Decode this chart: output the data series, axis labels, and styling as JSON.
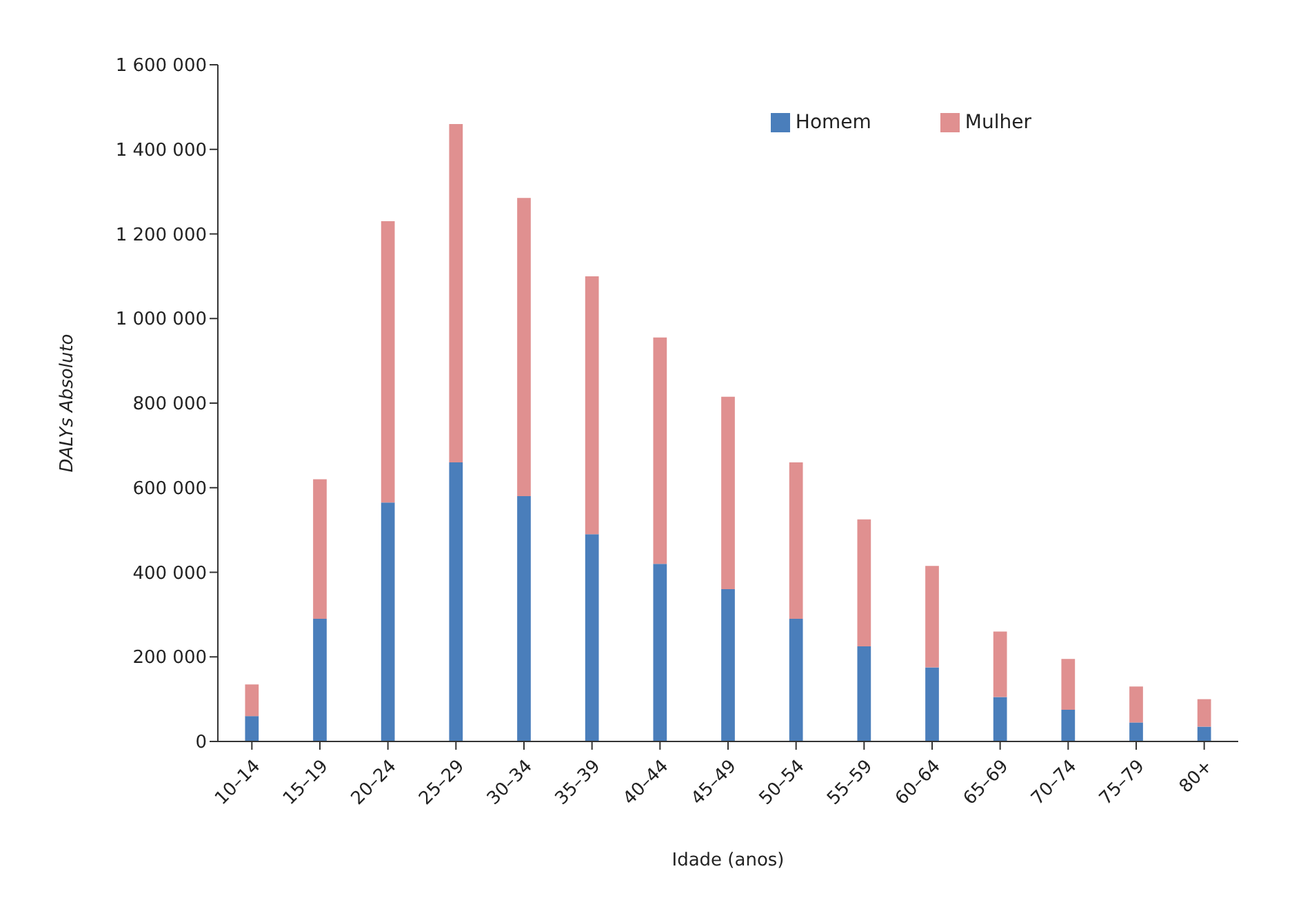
{
  "chart_data": {
    "type": "bar",
    "stacked": true,
    "xlabel": "Idade (anos)",
    "ylabel": "DALYs Absoluto",
    "categories": [
      "10–14",
      "15–19",
      "20–24",
      "25–29",
      "30–34",
      "35–39",
      "40–44",
      "45–49",
      "50–54",
      "55–59",
      "60–64",
      "65–69",
      "70–74",
      "75–79",
      "80+"
    ],
    "series": [
      {
        "name": "Homem",
        "color": "#4a7ebb",
        "values": [
          60000,
          290000,
          565000,
          660000,
          580000,
          490000,
          420000,
          360000,
          290000,
          225000,
          175000,
          105000,
          75000,
          45000,
          35000
        ]
      },
      {
        "name": "Mulher",
        "color": "#e09090",
        "values": [
          75000,
          330000,
          665000,
          800000,
          705000,
          610000,
          535000,
          455000,
          370000,
          300000,
          240000,
          155000,
          120000,
          85000,
          65000
        ]
      }
    ],
    "ylim": [
      0,
      1600000
    ],
    "yticks": [
      0,
      {
        "value": 200000,
        "label": "200 000"
      },
      {
        "value": 400000,
        "label": "400 000"
      },
      {
        "value": 600000,
        "label": "600 000"
      },
      {
        "value": 800000,
        "label": "800 000"
      },
      {
        "value": 1000000,
        "label": "1 000 000"
      },
      {
        "value": 1200000,
        "label": "1 200 000"
      },
      {
        "value": 1400000,
        "label": "1 400 000"
      },
      {
        "value": 1600000,
        "label": "1 600 000"
      }
    ],
    "grid": false,
    "legend": "top right"
  }
}
